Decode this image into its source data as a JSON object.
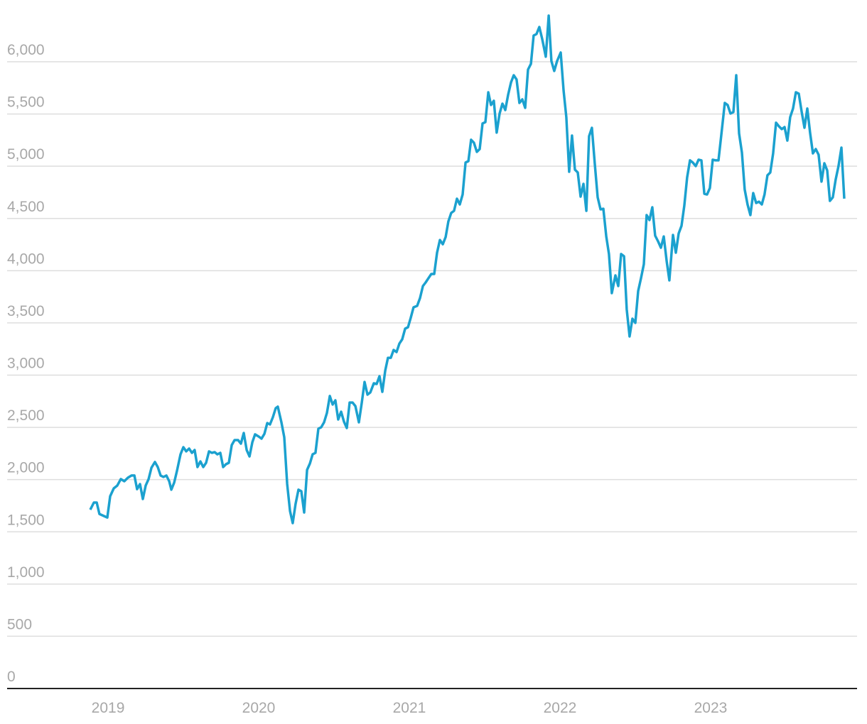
{
  "chart_data": {
    "type": "line",
    "x": [
      2018.882,
      2018.906,
      2018.925,
      2018.943,
      2018.995,
      2019.014,
      2019.038,
      2019.061,
      2019.085,
      2019.108,
      2019.132,
      2019.156,
      2019.175,
      2019.193,
      2019.212,
      2019.231,
      2019.25,
      2019.269,
      2019.288,
      2019.311,
      2019.33,
      2019.349,
      2019.368,
      2019.387,
      2019.406,
      2019.42,
      2019.439,
      2019.458,
      2019.481,
      2019.5,
      2019.519,
      2019.538,
      2019.557,
      2019.575,
      2019.594,
      2019.613,
      2019.632,
      2019.651,
      2019.67,
      2019.689,
      2019.708,
      2019.726,
      2019.745,
      2019.764,
      2019.783,
      2019.802,
      2019.821,
      2019.84,
      2019.863,
      2019.882,
      2019.901,
      2019.92,
      2019.939,
      2019.958,
      2019.976,
      2020.0,
      2020.019,
      2020.038,
      2020.057,
      2020.075,
      2020.094,
      2020.113,
      2020.127,
      2020.151,
      2020.17,
      2020.189,
      2020.208,
      2020.226,
      2020.245,
      2020.264,
      2020.283,
      2020.302,
      2020.321,
      2020.34,
      2020.358,
      2020.377,
      2020.396,
      2020.415,
      2020.434,
      2020.453,
      2020.472,
      2020.491,
      2020.509,
      2020.528,
      2020.547,
      2020.566,
      2020.585,
      2020.604,
      2020.623,
      2020.642,
      2020.665,
      2020.684,
      2020.703,
      2020.722,
      2020.741,
      2020.764,
      2020.783,
      2020.802,
      2020.821,
      2020.84,
      2020.858,
      2020.877,
      2020.896,
      2020.915,
      2020.934,
      2020.953,
      2020.972,
      2020.991,
      2021.009,
      2021.028,
      2021.052,
      2021.071,
      2021.09,
      2021.108,
      2021.127,
      2021.146,
      2021.165,
      2021.184,
      2021.203,
      2021.222,
      2021.241,
      2021.259,
      2021.278,
      2021.297,
      2021.316,
      2021.335,
      2021.354,
      2021.373,
      2021.392,
      2021.41,
      2021.429,
      2021.448,
      2021.467,
      2021.486,
      2021.505,
      2021.524,
      2021.542,
      2021.561,
      2021.58,
      2021.599,
      2021.618,
      2021.637,
      2021.656,
      2021.675,
      2021.693,
      2021.712,
      2021.731,
      2021.75,
      2021.769,
      2021.788,
      2021.807,
      2021.825,
      2021.844,
      2021.863,
      2021.882,
      2021.906,
      2021.925,
      2021.943,
      2021.962,
      2021.981,
      2022.005,
      2022.024,
      2022.042,
      2022.061,
      2022.08,
      2022.099,
      2022.118,
      2022.137,
      2022.156,
      2022.175,
      2022.193,
      2022.212,
      2022.231,
      2022.25,
      2022.269,
      2022.288,
      2022.307,
      2022.325,
      2022.344,
      2022.368,
      2022.387,
      2022.406,
      2022.425,
      2022.443,
      2022.462,
      2022.481,
      2022.5,
      2022.519,
      2022.538,
      2022.557,
      2022.575,
      2022.594,
      2022.613,
      2022.632,
      2022.651,
      2022.67,
      2022.689,
      2022.708,
      2022.726,
      2022.75,
      2022.769,
      2022.788,
      2022.807,
      2022.825,
      2022.844,
      2022.863,
      2022.882,
      2022.901,
      2022.92,
      2022.939,
      2022.958,
      2022.976,
      2022.995,
      2023.014,
      2023.033,
      2023.052,
      2023.071,
      2023.094,
      2023.113,
      2023.132,
      2023.151,
      2023.17,
      2023.189,
      2023.208,
      2023.226,
      2023.245,
      2023.264,
      2023.283,
      2023.302,
      2023.321,
      2023.34,
      2023.358,
      2023.377,
      2023.396,
      2023.415,
      2023.434,
      2023.453,
      2023.472,
      2023.491,
      2023.509,
      2023.528,
      2023.547,
      2023.566,
      2023.585,
      2023.604,
      2023.623,
      2023.642,
      2023.66,
      2023.679,
      2023.698,
      2023.717,
      2023.736,
      2023.755,
      2023.774,
      2023.792,
      2023.811,
      2023.83,
      2023.849,
      2023.868,
      2023.887
    ],
    "values": [
      1712,
      1780,
      1780,
      1671,
      1637,
      1841,
      1916,
      1943,
      2005,
      1984,
      2018,
      2039,
      2039,
      1909,
      1957,
      1814,
      1943,
      2005,
      2113,
      2168,
      2120,
      2039,
      2025,
      2039,
      1984,
      1903,
      1971,
      2086,
      2242,
      2310,
      2270,
      2297,
      2256,
      2283,
      2120,
      2174,
      2120,
      2161,
      2270,
      2256,
      2263,
      2242,
      2256,
      2120,
      2147,
      2161,
      2331,
      2378,
      2378,
      2344,
      2446,
      2283,
      2222,
      2358,
      2433,
      2412,
      2392,
      2439,
      2541,
      2528,
      2596,
      2684,
      2698,
      2548,
      2405,
      1957,
      1699,
      1583,
      1767,
      1903,
      1889,
      1685,
      2093,
      2154,
      2242,
      2256,
      2487,
      2501,
      2548,
      2637,
      2800,
      2718,
      2759,
      2575,
      2650,
      2555,
      2494,
      2738,
      2738,
      2704,
      2548,
      2732,
      2935,
      2813,
      2834,
      2922,
      2915,
      2990,
      2840,
      3044,
      3166,
      3166,
      3241,
      3221,
      3302,
      3343,
      3445,
      3459,
      3547,
      3649,
      3663,
      3737,
      3853,
      3887,
      3928,
      3968,
      3968,
      4172,
      4294,
      4253,
      4322,
      4471,
      4553,
      4573,
      4689,
      4634,
      4729,
      5035,
      5049,
      5253,
      5225,
      5137,
      5164,
      5409,
      5422,
      5708,
      5586,
      5626,
      5321,
      5504,
      5599,
      5538,
      5687,
      5803,
      5871,
      5830,
      5606,
      5640,
      5558,
      5925,
      5980,
      6251,
      6265,
      6333,
      6217,
      6048,
      6442,
      6007,
      5912,
      6007,
      6088,
      5721,
      5470,
      4947,
      5293,
      4967,
      4940,
      4709,
      4831,
      4573,
      5287,
      5368,
      5028,
      4702,
      4587,
      4593,
      4328,
      4159,
      3785,
      3955,
      3853,
      4159,
      4138,
      3629,
      3370,
      3540,
      3500,
      3805,
      3928,
      4063,
      4532,
      4485,
      4607,
      4335,
      4281,
      4220,
      4328,
      4091,
      3907,
      4342,
      4172,
      4356,
      4430,
      4621,
      4893,
      5056,
      5035,
      5001,
      5062,
      5056,
      4736,
      4729,
      4791,
      5062,
      5056,
      5056,
      5300,
      5606,
      5586,
      5504,
      5518,
      5871,
      5314,
      5130,
      4777,
      4634,
      4532,
      4743,
      4648,
      4661,
      4634,
      4729,
      4913,
      4940,
      5123,
      5416,
      5382,
      5355,
      5375,
      5246,
      5470,
      5552,
      5708,
      5694,
      5524,
      5368,
      5552,
      5321,
      5123,
      5164,
      5110,
      4852,
      5028,
      4960,
      4668,
      4702,
      4872,
      5001,
      5178,
      4689
    ],
    "color": "#1ba1cf",
    "xlim": [
      2018.33,
      2023.972
    ],
    "xticks": [
      2019,
      2020,
      2021,
      2022,
      2023
    ],
    "ylim": [
      0,
      6500
    ],
    "yticks": [
      0,
      500,
      {
        "value": 1000,
        "label": "1,000"
      },
      {
        "value": 1500,
        "label": "1,500"
      },
      {
        "value": 2000,
        "label": "2,000"
      },
      {
        "value": 2500,
        "label": "2,500"
      },
      {
        "value": 3000,
        "label": "3,000"
      },
      {
        "value": 3500,
        "label": "3,500"
      },
      {
        "value": 4000,
        "label": "4,000"
      },
      {
        "value": 4500,
        "label": "4,500"
      },
      {
        "value": 5000,
        "label": "5,000"
      },
      {
        "value": 5500,
        "label": "5,500"
      },
      {
        "value": 6000,
        "label": "6,000"
      }
    ],
    "grid": true
  }
}
